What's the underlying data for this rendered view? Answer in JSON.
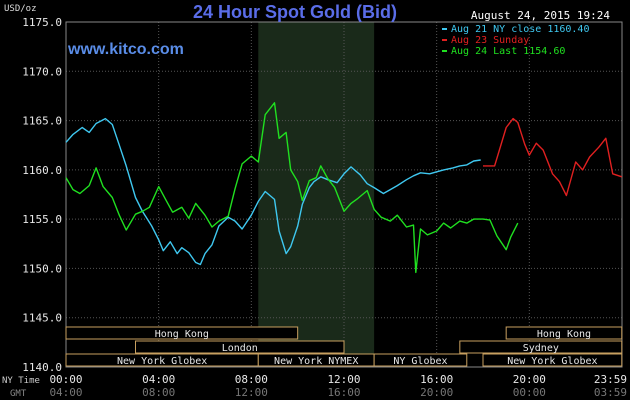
{
  "chart_data": {
    "type": "line",
    "title": "24 Hour Spot Gold (Bid)",
    "brand": "www.kitco.com",
    "timestamp": "August 24, 2015 19:24",
    "y_unit": "USD/oz",
    "ylim": [
      1140,
      1175
    ],
    "y_ticks": [
      "1175.0",
      "1170.0",
      "1165.0",
      "1160.0",
      "1155.0",
      "1150.0",
      "1145.0",
      "1140.0"
    ],
    "x_tick_labels_ny": [
      "00:00",
      "04:00",
      "08:00",
      "12:00",
      "16:00",
      "20:00",
      "23:59"
    ],
    "x_tick_labels_gmt": [
      "04:00",
      "08:00",
      "12:00",
      "16:00",
      "20:00",
      "00:00",
      "03:59"
    ],
    "row_label_ny": "NY Time",
    "row_label_gmt": "GMT",
    "legend": [
      {
        "label": "Aug 21 NY close 1160.40",
        "color": "#3fc8f0"
      },
      {
        "label": "Aug 23 Sunday",
        "color": "#e02020"
      },
      {
        "label": "Aug 24 Last 1154.60",
        "color": "#20e020"
      }
    ],
    "grid": true,
    "series": [
      {
        "name": "Aug 21 NY close 1160.40",
        "color": "#3fc8f0",
        "x": [
          0,
          0.3,
          0.7,
          1,
          1.3,
          1.7,
          2,
          2.3,
          2.6,
          3,
          3.3,
          3.7,
          4,
          4.2,
          4.5,
          4.8,
          5,
          5.3,
          5.6,
          5.8,
          6,
          6.3,
          6.6,
          7,
          7.3,
          7.6,
          8,
          8.3,
          8.6,
          9,
          9.2,
          9.5,
          9.7,
          10,
          10.2,
          10.5,
          10.7,
          11,
          11.3,
          11.7,
          12,
          12.3,
          12.7,
          13,
          13.3,
          13.7,
          14,
          14.3,
          14.7,
          15,
          15.3,
          15.7,
          16,
          16.3,
          16.7,
          17,
          17.3,
          17.6,
          17.9
        ],
        "y": [
          1162.8,
          1163.6,
          1164.3,
          1163.8,
          1164.7,
          1165.2,
          1164.6,
          1162.5,
          1160.4,
          1157.2,
          1155.8,
          1154.3,
          1152.9,
          1151.8,
          1152.7,
          1151.5,
          1152.1,
          1151.6,
          1150.6,
          1150.4,
          1151.5,
          1152.4,
          1154.3,
          1155.2,
          1154.8,
          1154.0,
          1155.4,
          1156.8,
          1157.8,
          1157.0,
          1153.8,
          1151.5,
          1152.2,
          1154.3,
          1156.5,
          1158.2,
          1158.8,
          1159.3,
          1159.0,
          1158.7,
          1159.6,
          1160.3,
          1159.5,
          1158.6,
          1158.2,
          1157.6,
          1158.0,
          1158.4,
          1159.0,
          1159.4,
          1159.7,
          1159.6,
          1159.8,
          1160.0,
          1160.2,
          1160.4,
          1160.5,
          1160.9,
          1161.0
        ]
      },
      {
        "name": "Aug 23 Sunday",
        "color": "#e02020",
        "x": [
          18,
          18.5,
          19,
          19.3,
          19.5,
          19.8,
          20,
          20.3,
          20.6,
          21,
          21.3,
          21.6,
          22,
          22.3,
          22.6,
          23,
          23.3,
          23.6,
          23.99
        ],
        "y": [
          1160.4,
          1160.4,
          1164.3,
          1165.2,
          1164.8,
          1162.6,
          1161.5,
          1162.7,
          1162.0,
          1159.6,
          1158.8,
          1157.4,
          1160.8,
          1160.0,
          1161.3,
          1162.3,
          1163.2,
          1159.6,
          1159.3
        ]
      },
      {
        "name": "Aug 24 Last 1154.60",
        "color": "#20e020",
        "x": [
          0,
          0.3,
          0.6,
          1,
          1.3,
          1.6,
          2,
          2.3,
          2.6,
          3,
          3.3,
          3.6,
          4,
          4.3,
          4.6,
          5,
          5.3,
          5.6,
          6,
          6.3,
          6.6,
          7,
          7.3,
          7.6,
          8,
          8.3,
          8.6,
          9,
          9.2,
          9.5,
          9.7,
          10,
          10.2,
          10.5,
          10.8,
          11,
          11.3,
          11.6,
          12,
          12.3,
          12.6,
          13,
          13.3,
          13.6,
          14,
          14.3,
          14.7,
          15,
          15.1,
          15.3,
          15.6,
          16,
          16.3,
          16.6,
          17,
          17.3,
          17.6,
          18,
          18.3,
          18.6,
          19,
          19.2,
          19.5
        ],
        "y": [
          1159.2,
          1158.0,
          1157.6,
          1158.4,
          1160.2,
          1158.3,
          1157.2,
          1155.4,
          1153.9,
          1155.5,
          1155.8,
          1156.2,
          1158.3,
          1157.0,
          1155.7,
          1156.2,
          1155.1,
          1156.6,
          1155.4,
          1154.2,
          1154.8,
          1155.3,
          1158.1,
          1160.6,
          1161.4,
          1160.8,
          1165.6,
          1166.8,
          1163.2,
          1163.8,
          1160.0,
          1158.8,
          1156.9,
          1158.9,
          1159.2,
          1160.4,
          1159.1,
          1158.2,
          1155.8,
          1156.6,
          1157.1,
          1157.9,
          1156.0,
          1155.2,
          1154.8,
          1155.4,
          1154.2,
          1154.4,
          1149.6,
          1154.0,
          1153.4,
          1153.8,
          1154.6,
          1154.1,
          1154.8,
          1154.6,
          1155.0,
          1155.0,
          1154.9,
          1153.3,
          1151.9,
          1153.2,
          1154.6
        ]
      }
    ],
    "sessions": [
      {
        "label": "Hong Kong",
        "start": 0,
        "end": 10
      },
      {
        "label": "Hong Kong",
        "start": 19,
        "end": 23.99
      },
      {
        "label": "London",
        "start": 3,
        "end": 12
      },
      {
        "label": "Sydney",
        "start": 17,
        "end": 23.99
      },
      {
        "label": "New York Globex",
        "start": 0,
        "end": 8.3
      },
      {
        "label": "New York NYMEX",
        "start": 8.3,
        "end": 13.3
      },
      {
        "label": "NY Globex",
        "start": 13.3,
        "end": 17.3
      },
      {
        "label": "New York Globex",
        "start": 18,
        "end": 23.99
      }
    ]
  }
}
